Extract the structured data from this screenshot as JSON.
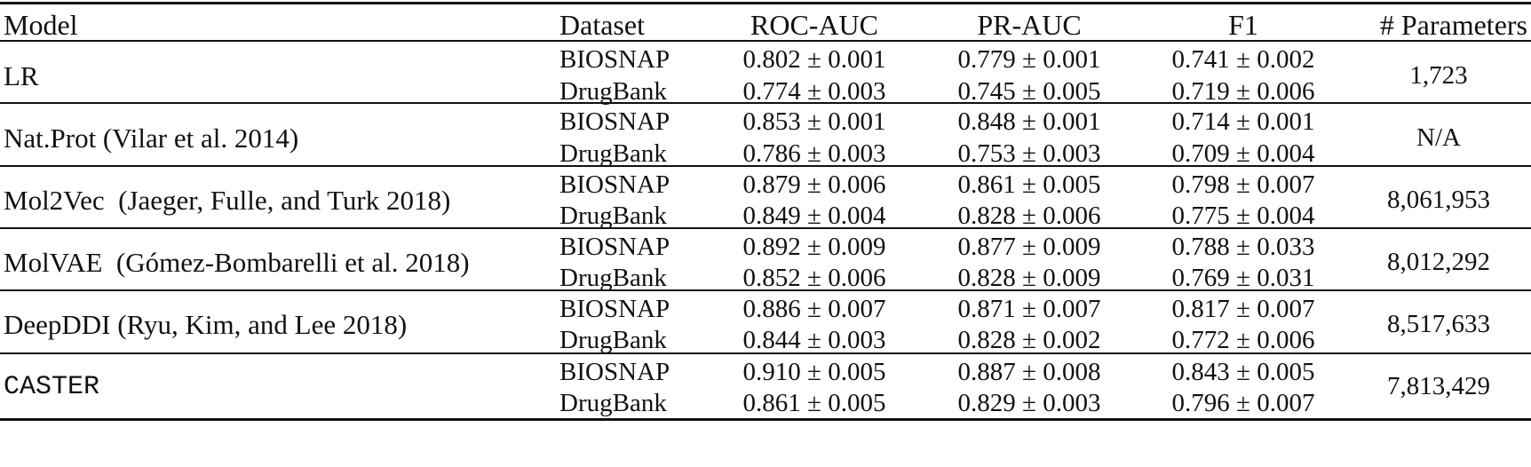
{
  "table": {
    "headers": {
      "model": "Model",
      "dataset": "Dataset",
      "roc_auc": "ROC-AUC",
      "pr_auc": "PR-AUC",
      "f1": "F1",
      "params": "# Parameters"
    },
    "rows": [
      {
        "model": "LR",
        "params": "1,723",
        "biosnap": {
          "dataset": "BIOSNAP",
          "roc": "0.802 ± 0.001",
          "pr": "0.779 ± 0.001",
          "f1": "0.741 ± 0.002"
        },
        "drugbank": {
          "dataset": "DrugBank",
          "roc": "0.774 ± 0.003",
          "pr": "0.745 ± 0.005",
          "f1": "0.719 ± 0.006"
        }
      },
      {
        "model": "Nat.Prot (Vilar et al. 2014)",
        "params": "N/A",
        "biosnap": {
          "dataset": "BIOSNAP",
          "roc": "0.853 ± 0.001",
          "pr": "0.848 ± 0.001",
          "f1": "0.714 ± 0.001"
        },
        "drugbank": {
          "dataset": "DrugBank",
          "roc": "0.786 ± 0.003",
          "pr": "0.753 ± 0.003",
          "f1": "0.709 ± 0.004"
        }
      },
      {
        "model": "Mol2Vec  (Jaeger, Fulle, and Turk 2018)",
        "params": "8,061,953",
        "biosnap": {
          "dataset": "BIOSNAP",
          "roc": "0.879 ± 0.006",
          "pr": "0.861 ± 0.005",
          "f1": "0.798 ± 0.007"
        },
        "drugbank": {
          "dataset": "DrugBank",
          "roc": "0.849 ± 0.004",
          "pr": "0.828 ± 0.006",
          "f1": "0.775 ± 0.004"
        }
      },
      {
        "model": "MolVAE  (Gómez-Bombarelli et al. 2018)",
        "params": "8,012,292",
        "biosnap": {
          "dataset": "BIOSNAP",
          "roc": "0.892 ± 0.009",
          "pr": "0.877 ± 0.009",
          "f1": "0.788 ± 0.033"
        },
        "drugbank": {
          "dataset": "DrugBank",
          "roc": "0.852 ± 0.006",
          "pr": "0.828 ± 0.009",
          "f1": "0.769 ± 0.031"
        }
      },
      {
        "model": "DeepDDI (Ryu, Kim, and Lee 2018)",
        "params": "8,517,633",
        "biosnap": {
          "dataset": "BIOSNAP",
          "roc": "0.886 ± 0.007",
          "pr": "0.871 ± 0.007",
          "f1": "0.817 ± 0.007"
        },
        "drugbank": {
          "dataset": "DrugBank",
          "roc": "0.844 ± 0.003",
          "pr": "0.828 ± 0.002",
          "f1": "0.772 ± 0.006"
        }
      },
      {
        "model": "CASTER",
        "params": "7,813,429",
        "biosnap": {
          "dataset": "BIOSNAP",
          "roc": "0.910 ± 0.005",
          "pr": "0.887 ± 0.008",
          "f1": "0.843 ± 0.005"
        },
        "drugbank": {
          "dataset": "DrugBank",
          "roc": "0.861 ± 0.005",
          "pr": "0.829 ± 0.003",
          "f1": "0.796 ± 0.007"
        }
      }
    ]
  }
}
